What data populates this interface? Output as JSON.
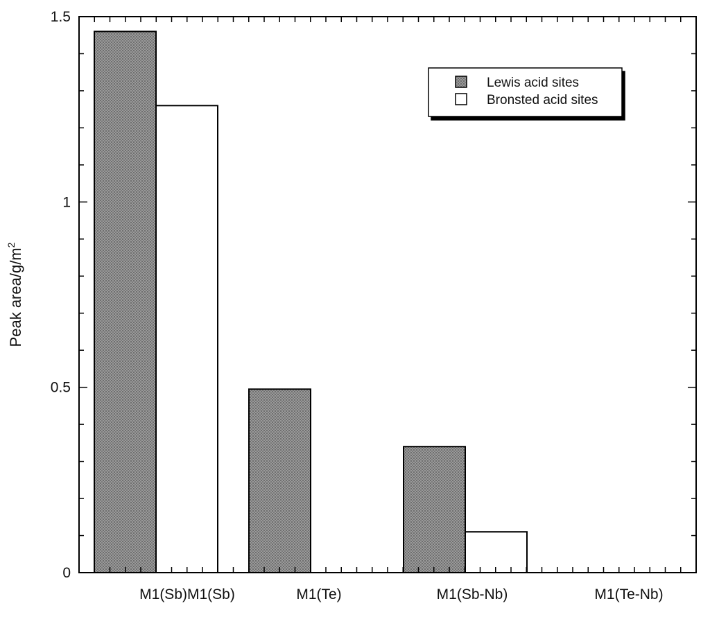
{
  "chart_data": {
    "type": "bar",
    "ylabel": "Peak area/g/m",
    "ylabel_superscript": "2",
    "ylim": [
      0,
      1.5
    ],
    "y_ticks": [
      "0",
      "0.5",
      "1",
      "1.5"
    ],
    "categories": [
      "M1(Sb)M1(Sb)",
      "M1(Te)",
      "M1(Sb-Nb)",
      "M1(Te-Nb)"
    ],
    "series": [
      {
        "name": "Lewis acid sites",
        "values": [
          1.46,
          0.495,
          0.34,
          0
        ],
        "color": "#8a8a8a",
        "pattern": "hatched-gray"
      },
      {
        "name": "Bronsted acid sites",
        "values": [
          1.26,
          0,
          0.11,
          0
        ],
        "color": "#ffffff",
        "pattern": "white"
      }
    ],
    "legend_position": "top-right",
    "grid": false
  }
}
